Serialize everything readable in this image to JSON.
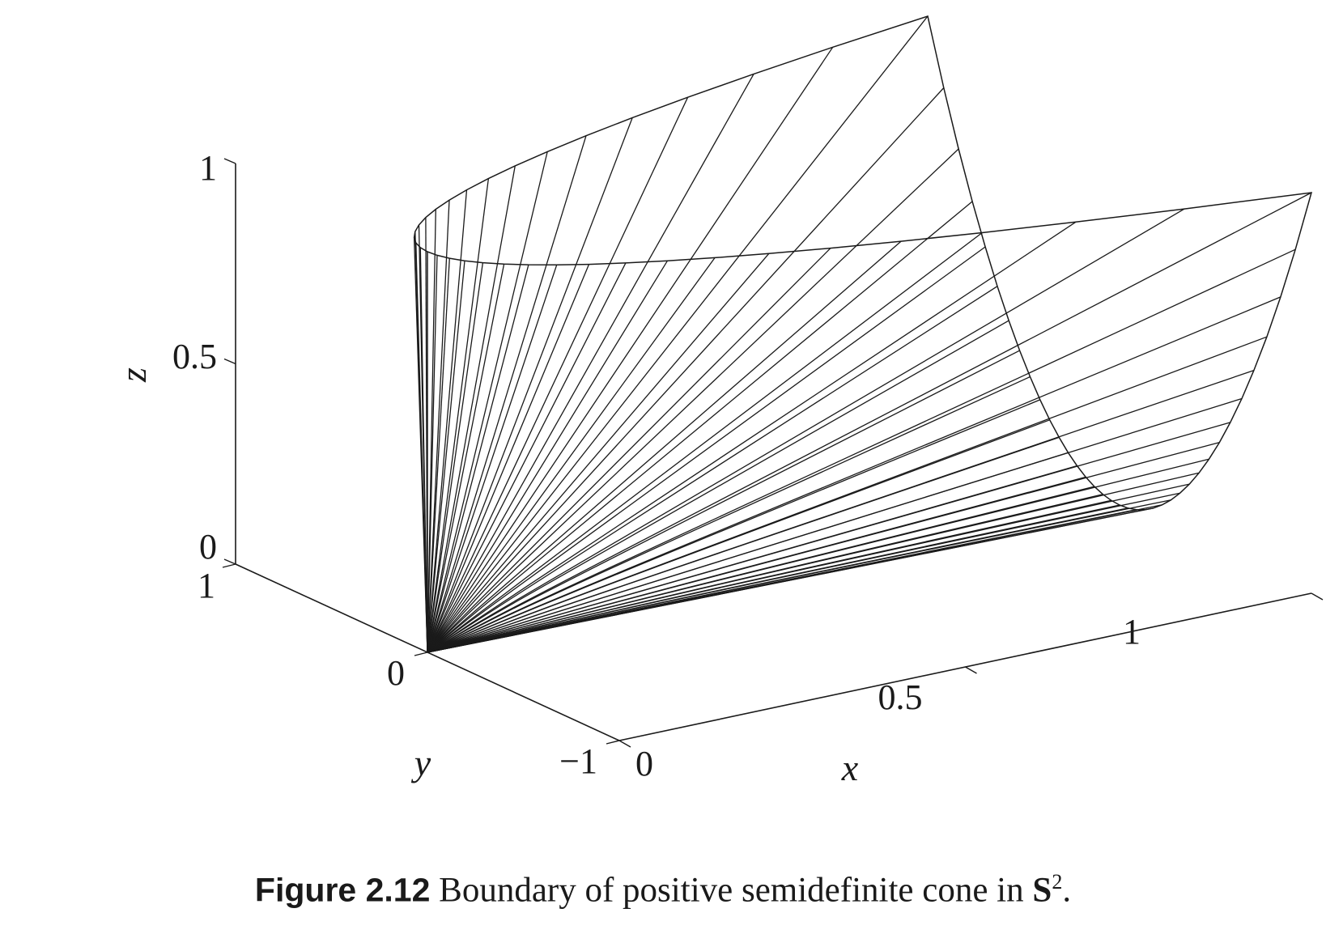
{
  "chart_data": {
    "type": "surface-3d",
    "title": "",
    "xlabel": "x",
    "ylabel": "y",
    "zlabel": "z",
    "xlim": [
      0,
      1
    ],
    "ylim": [
      -1,
      1
    ],
    "zlim": [
      0,
      1
    ],
    "x_ticks": [
      "0",
      "0.5",
      "1"
    ],
    "y_ticks": [
      "−1",
      "0",
      "1"
    ],
    "z_ticks": [
      "0",
      "0.5",
      "1"
    ],
    "surface": "boundary of {(x,y,z) : x >= 0, z >= 0, x*z >= y^2}, drawn as rays from the origin",
    "line_color": "#1a1a1a"
  },
  "caption": {
    "label": "Figure 2.12",
    "text": " Boundary of positive semidefinite cone in ",
    "set": "S",
    "superscript": "2",
    "end": "."
  }
}
